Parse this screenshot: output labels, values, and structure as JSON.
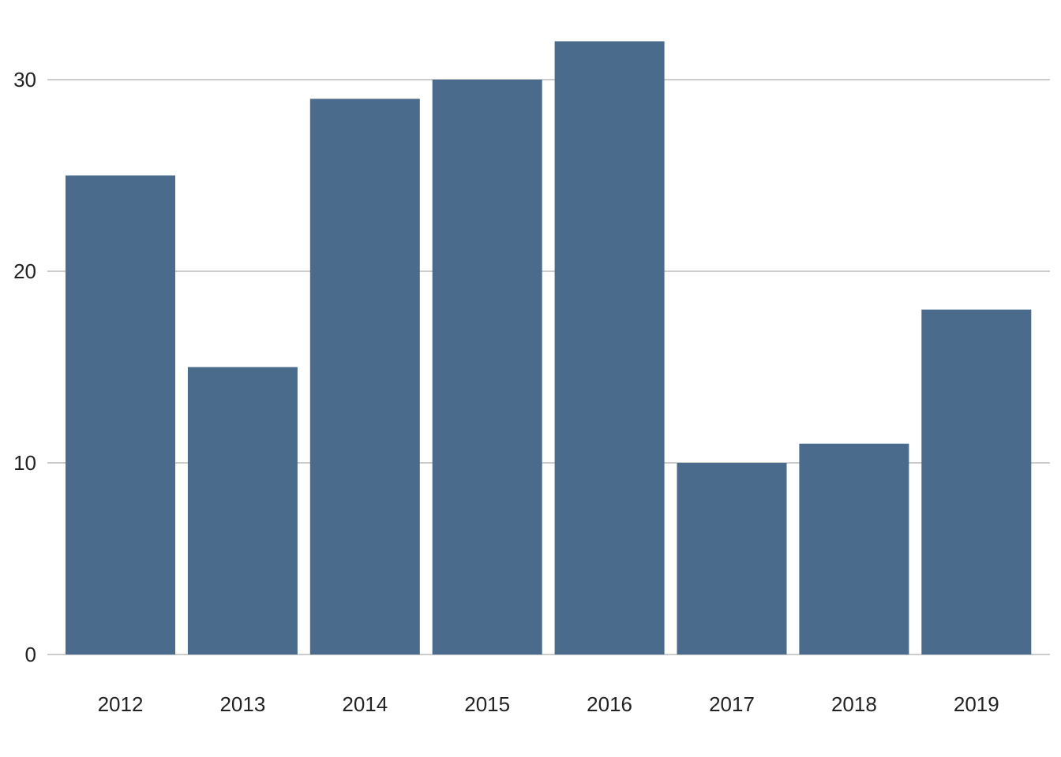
{
  "chart_data": {
    "type": "bar",
    "categories": [
      "2012",
      "2013",
      "2014",
      "2015",
      "2016",
      "2017",
      "2018",
      "2019"
    ],
    "values": [
      25,
      15,
      29,
      30,
      32,
      10,
      11,
      18
    ],
    "title": "",
    "xlabel": "",
    "ylabel": "",
    "ylim": [
      0,
      32
    ],
    "yticks": [
      0,
      10,
      20,
      30
    ],
    "grid": "horizontal",
    "legend": "none",
    "colors": {
      "bar": "#4a6b8b",
      "grid": "#cccccc",
      "text": "#222222"
    }
  }
}
